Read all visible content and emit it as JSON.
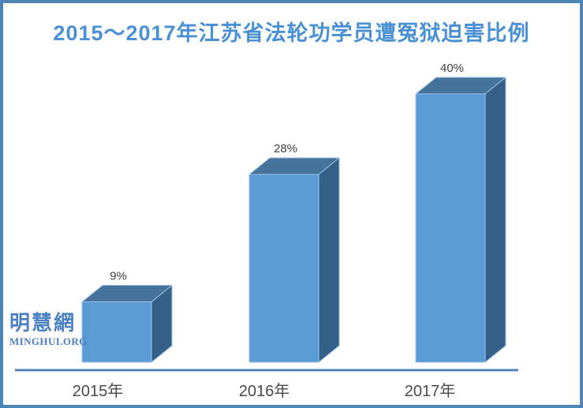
{
  "page": {
    "title": "2015～2017年江苏省法轮功学员遭冤狱迫害比例"
  },
  "watermark": {
    "cjk": "明慧網",
    "latin": "MINGHUI.ORG"
  },
  "chart_data": {
    "type": "bar",
    "style": "3d-column",
    "title": "2015～2017年江苏省法轮功学员遭冤狱迫害比例",
    "categories": [
      "2015年",
      "2016年",
      "2017年"
    ],
    "values": [
      9,
      28,
      40
    ],
    "value_labels": [
      "9%",
      "28%",
      "40%"
    ],
    "unit": "%",
    "xlabel": "",
    "ylabel": "",
    "ylim": [
      0,
      45
    ],
    "grid": false,
    "legend": "none",
    "colors": {
      "bar_front": "#5b9bd5",
      "bar_top": "#46739c",
      "bar_side": "#35608a",
      "bar_edge": "#9dc3e6",
      "axis_line": "#4f7fb2",
      "axis_glow": "#b3cbe8",
      "title": "#4a90d5",
      "label_text": "#404040",
      "category_text": "#4a4a4a",
      "border": "#4d85b5",
      "watermark": "#4b80c2"
    }
  }
}
